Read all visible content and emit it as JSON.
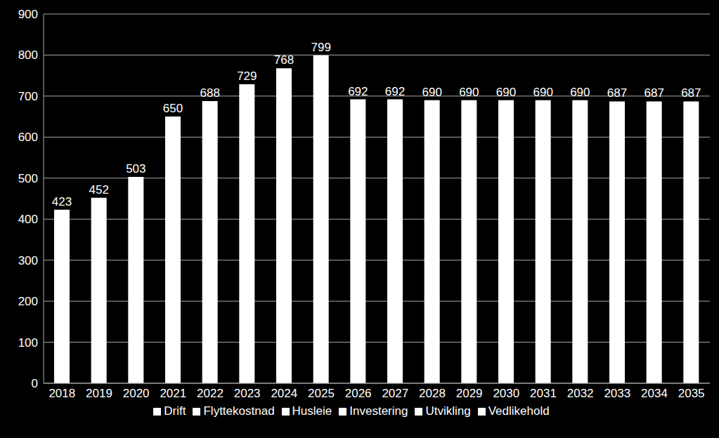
{
  "chart_data": {
    "type": "bar",
    "categories": [
      "2018",
      "2019",
      "2020",
      "2021",
      "2022",
      "2023",
      "2024",
      "2025",
      "2026",
      "2027",
      "2028",
      "2029",
      "2030",
      "2031",
      "2032",
      "2033",
      "2034",
      "2035"
    ],
    "series": [
      {
        "name": "Husleie",
        "color": "#ffffff",
        "values": [
          423,
          452,
          503,
          650,
          688,
          729,
          768,
          799,
          692,
          692,
          690,
          690,
          690,
          690,
          690,
          687,
          687,
          687
        ]
      },
      {
        "name": "Drift",
        "color": "#ffffff",
        "values": [
          null,
          null,
          null,
          null,
          null,
          null,
          null,
          null,
          null,
          null,
          null,
          null,
          null,
          null,
          null,
          null,
          null,
          null
        ]
      },
      {
        "name": "Vedlikehold",
        "color": "#ffffff",
        "values": [
          null,
          null,
          null,
          null,
          null,
          null,
          null,
          null,
          null,
          null,
          null,
          null,
          null,
          null,
          null,
          null,
          null,
          null
        ]
      },
      {
        "name": "Utvikling",
        "color": "#ffffff",
        "values": [
          null,
          null,
          null,
          null,
          null,
          null,
          null,
          null,
          null,
          null,
          null,
          null,
          null,
          null,
          null,
          null,
          null,
          null
        ]
      },
      {
        "name": "Investering",
        "color": "#ffffff",
        "values": [
          null,
          null,
          null,
          null,
          null,
          null,
          null,
          null,
          null,
          null,
          null,
          null,
          null,
          null,
          null,
          null,
          null,
          null
        ]
      },
      {
        "name": "Flyttekostnad",
        "color": "#ffffff",
        "values": [
          null,
          null,
          null,
          null,
          null,
          null,
          null,
          null,
          null,
          null,
          null,
          null,
          null,
          null,
          null,
          null,
          null,
          null
        ]
      }
    ],
    "ylim": [
      0,
      900
    ],
    "yticks": [
      0,
      100,
      200,
      300,
      400,
      500,
      600,
      700,
      800,
      900
    ],
    "grid": true,
    "stacked": true,
    "data_labels": true,
    "legend": "bottom"
  }
}
